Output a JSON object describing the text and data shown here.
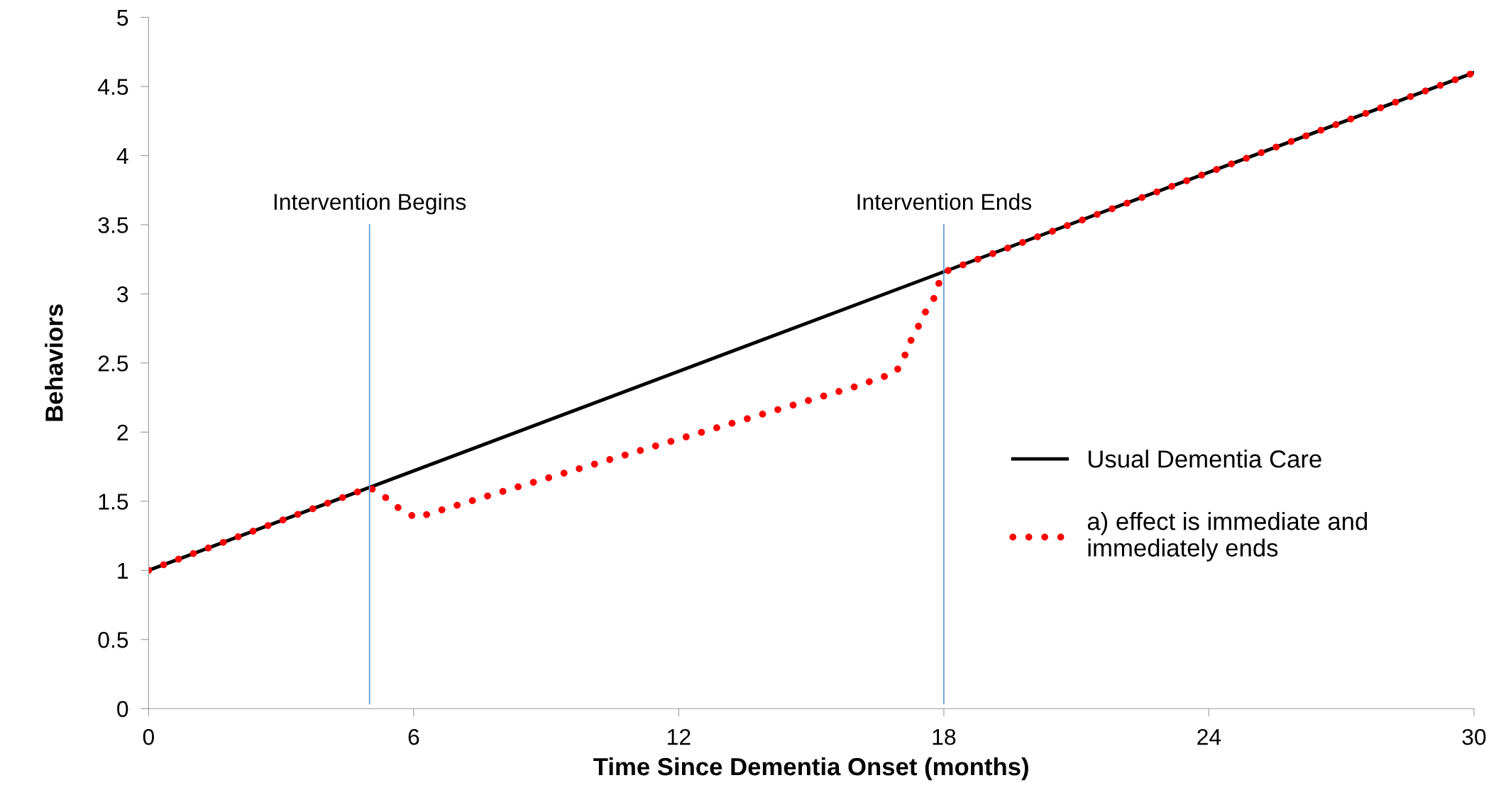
{
  "chart_data": {
    "type": "line",
    "xlabel": "Time Since Dementia Onset (months)",
    "ylabel": "Behaviors",
    "xlim": [
      0,
      30
    ],
    "ylim": [
      0,
      5
    ],
    "xticks": [
      0,
      6,
      12,
      18,
      24,
      30
    ],
    "yticks": [
      0,
      0.5,
      1,
      1.5,
      2,
      2.5,
      3,
      3.5,
      4,
      4.5,
      5
    ],
    "grid": false,
    "legend": "right",
    "series": [
      {
        "name": "Usual Dementia Care",
        "color": "#000000",
        "line_style": "solid",
        "x": [
          0,
          30
        ],
        "values": [
          1,
          4.6
        ]
      },
      {
        "name": "a) effect is immediate and immediately ends",
        "color": "#ff0000",
        "line_style": "dotted",
        "x": [
          0,
          5,
          5.4,
          5.7,
          6.06,
          6.45,
          8,
          10,
          12,
          14,
          16,
          16.9,
          17.07,
          17.2,
          17.4,
          17.6,
          17.8,
          17.9,
          18.1,
          30
        ],
        "values": [
          1,
          1.6,
          1.52,
          1.44,
          1.38,
          1.42,
          1.57,
          1.76,
          1.95,
          2.14,
          2.33,
          2.43,
          2.51,
          2.63,
          2.75,
          2.88,
          2.98,
          3.09,
          3.17,
          4.6
        ]
      }
    ],
    "ref_lines": [
      {
        "axis": "x",
        "value": 5,
        "label": "Intervention Begins",
        "color": "#5b9bd5"
      },
      {
        "axis": "x",
        "value": 18,
        "label": "Intervention Ends",
        "color": "#5b9bd5"
      }
    ]
  }
}
